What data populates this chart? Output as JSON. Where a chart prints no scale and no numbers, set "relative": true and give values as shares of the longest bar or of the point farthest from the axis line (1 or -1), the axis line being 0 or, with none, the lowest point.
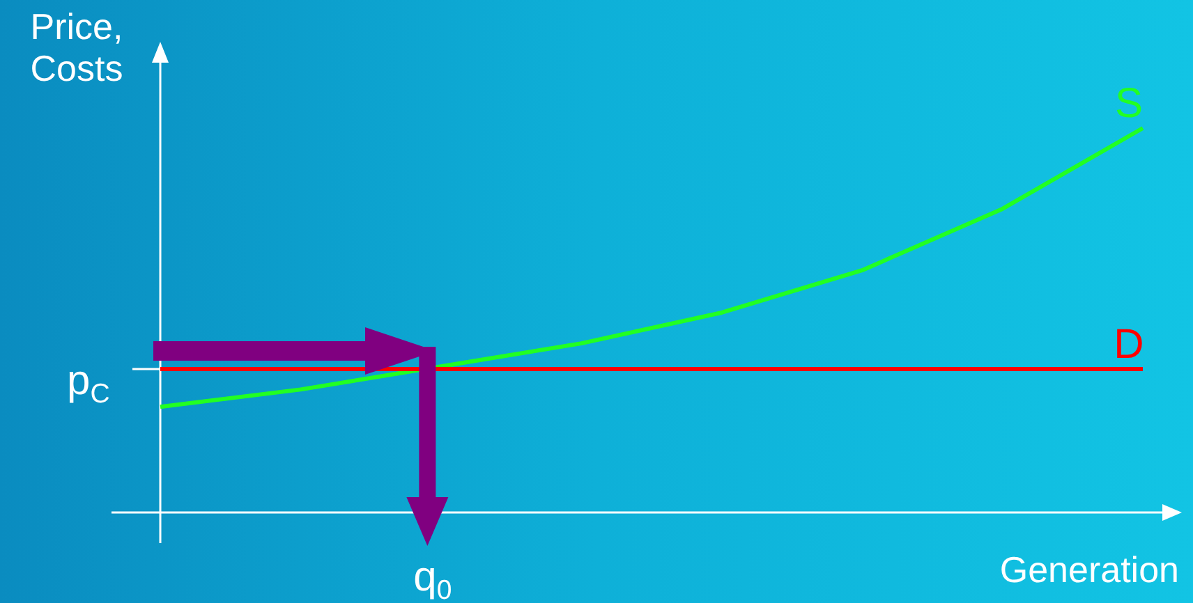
{
  "chart_data": {
    "type": "line",
    "relative": true,
    "xlabel": "Generation",
    "ylabel": "Price, Costs",
    "categories": [
      null,
      null,
      null,
      null,
      null,
      null,
      null,
      null
    ],
    "series": [
      {
        "name": "S",
        "color": "#22ff22",
        "values": [
          0.275,
          0.32,
          0.38,
          0.44,
          0.52,
          0.63,
          0.79,
          1
        ]
      },
      {
        "name": "D",
        "color": "#ff0000",
        "values": [
          0.373,
          0.373,
          0.373,
          0.373,
          0.373,
          0.373,
          0.373,
          0.373
        ]
      }
    ],
    "annotations": [
      "p$_{C}$",
      "q$_{0}$"
    ]
  }
}
